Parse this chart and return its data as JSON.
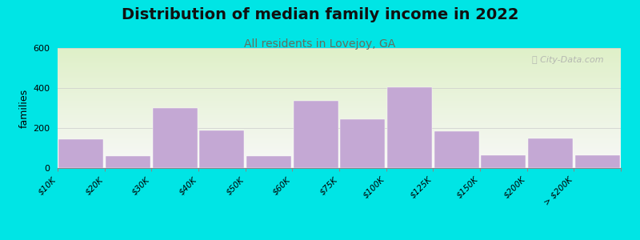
{
  "title": "Distribution of median family income in 2022",
  "subtitle": "All residents in Lovejoy, GA",
  "ylabel": "families",
  "categories": [
    "$10K",
    "$20K",
    "$30K",
    "$40K",
    "$50K",
    "$60K",
    "$75K",
    "$100K",
    "$125K",
    "$150K",
    "$200K",
    "> $200K"
  ],
  "values": [
    145,
    60,
    300,
    190,
    60,
    335,
    245,
    405,
    185,
    65,
    150,
    65
  ],
  "bar_color": "#c4a8d4",
  "background_color": "#00e5e5",
  "plot_bg_top": "#dff0c8",
  "plot_bg_bottom": "#f8f8f8",
  "ylim": [
    0,
    600
  ],
  "yticks": [
    0,
    200,
    400,
    600
  ],
  "title_fontsize": 14,
  "subtitle_fontsize": 10,
  "subtitle_color": "#607060",
  "watermark": "City-Data.com",
  "watermark_color": "#aaaaaa"
}
